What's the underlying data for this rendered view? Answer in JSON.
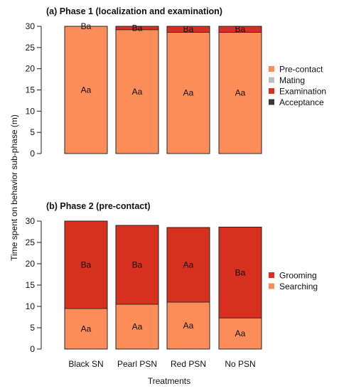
{
  "colors": {
    "pre_contact": "#FC8D59",
    "mating": "#BDBDBD",
    "examination": "#D7301F",
    "acceptance": "#3A3A3A",
    "grooming": "#D7301F",
    "searching": "#FC8D59"
  },
  "ylabel": "Time spent on behavior sub-phase (m)",
  "xlabel": "Treatments",
  "chart_data": [
    {
      "type": "bar",
      "stacked": true,
      "title": "(a) Phase 1 (localization and examination)",
      "categories": [
        "Black SN",
        "Pearl PSN",
        "Red PSN",
        "No PSN"
      ],
      "ylim": [
        0,
        30
      ],
      "yticks": [
        0,
        5,
        10,
        15,
        20,
        25,
        30
      ],
      "legend_position": "right",
      "series": [
        {
          "name": "Pre-contact",
          "color_key": "pre_contact",
          "values": [
            30,
            29.2,
            28.6,
            28.6
          ],
          "labels": [
            "Aa",
            "Aa",
            "Aa",
            "Aa"
          ]
        },
        {
          "name": "Mating",
          "color_key": "mating",
          "values": [
            0,
            0,
            0,
            0
          ],
          "labels": [
            "",
            "",
            "",
            ""
          ]
        },
        {
          "name": "Examination",
          "color_key": "examination",
          "values": [
            0,
            0.8,
            1.4,
            1.4
          ],
          "labels": [
            "Ba",
            "Ba",
            "Ba",
            "Ba"
          ]
        },
        {
          "name": "Acceptance",
          "color_key": "acceptance",
          "values": [
            0,
            0,
            0,
            0
          ],
          "labels": [
            "",
            "",
            "",
            ""
          ]
        }
      ]
    },
    {
      "type": "bar",
      "stacked": true,
      "title": "(b) Phase 2 (pre-contact)",
      "categories": [
        "Black SN",
        "Pearl PSN",
        "Red PSN",
        "No PSN"
      ],
      "ylim": [
        0,
        30
      ],
      "yticks": [
        0,
        5,
        10,
        15,
        20,
        25,
        30
      ],
      "legend_position": "right",
      "series": [
        {
          "name": "Searching",
          "color_key": "searching",
          "values": [
            9.5,
            10.5,
            11,
            7.3
          ],
          "labels": [
            "Aa",
            "Aa",
            "Aa",
            "Aa"
          ]
        },
        {
          "name": "Grooming",
          "color_key": "grooming",
          "values": [
            20.5,
            18.5,
            17.5,
            21.3
          ],
          "labels": [
            "Ba",
            "Ba",
            "Aa",
            "Ba"
          ]
        }
      ],
      "legend_order": [
        "Grooming",
        "Searching"
      ]
    }
  ]
}
